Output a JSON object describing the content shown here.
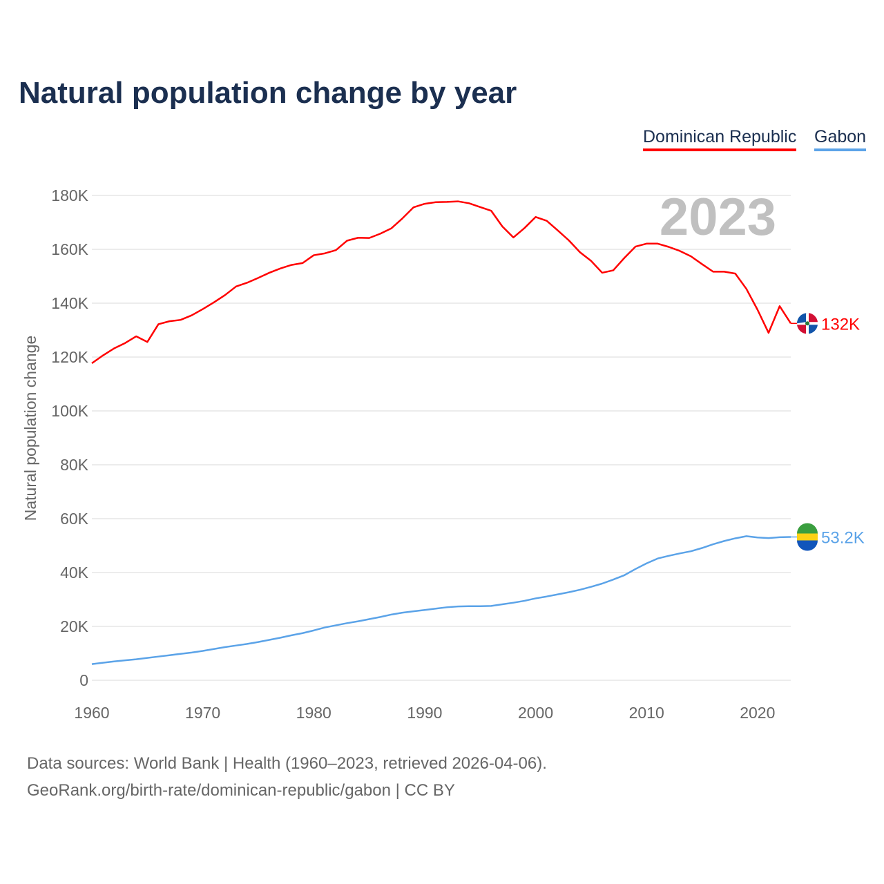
{
  "chart_data": {
    "type": "line",
    "title": "Natural population change by year",
    "ylabel": "Natural population change",
    "xlabel": "",
    "xlim": [
      1960,
      2023
    ],
    "ylim": [
      0,
      180000
    ],
    "xticks": [
      "1960",
      "1970",
      "1980",
      "1990",
      "2000",
      "2010",
      "2020"
    ],
    "yticks": [
      "0",
      "20K",
      "40K",
      "60K",
      "80K",
      "100K",
      "120K",
      "140K",
      "160K",
      "180K"
    ],
    "grid": true,
    "legend_position": "top-right",
    "year_label": "2023",
    "x": [
      1960,
      1961,
      1962,
      1963,
      1964,
      1965,
      1966,
      1967,
      1968,
      1969,
      1970,
      1971,
      1972,
      1973,
      1974,
      1975,
      1976,
      1977,
      1978,
      1979,
      1980,
      1981,
      1982,
      1983,
      1984,
      1985,
      1986,
      1987,
      1988,
      1989,
      1990,
      1991,
      1992,
      1993,
      1994,
      1995,
      1996,
      1997,
      1998,
      1999,
      2000,
      2001,
      2002,
      2003,
      2004,
      2005,
      2006,
      2007,
      2008,
      2009,
      2010,
      2011,
      2012,
      2013,
      2014,
      2015,
      2016,
      2017,
      2018,
      2019,
      2020,
      2021,
      2022,
      2023
    ],
    "series": [
      {
        "name": "Dominican Republic",
        "color": "#ff0000",
        "end_label": "132K",
        "values": [
          117700,
          120600,
          123200,
          125200,
          127700,
          125600,
          132200,
          133300,
          133800,
          135500,
          137800,
          140300,
          143000,
          146200,
          147600,
          149400,
          151300,
          152900,
          154200,
          154900,
          157800,
          158500,
          159700,
          163200,
          164300,
          164200,
          165800,
          167800,
          171500,
          175600,
          176900,
          177500,
          177600,
          177800,
          177100,
          175700,
          174300,
          168500,
          164400,
          167900,
          172000,
          170600,
          167000,
          163300,
          158900,
          155700,
          151300,
          152200,
          156800,
          161000,
          162100,
          162100,
          160900,
          159400,
          157400,
          154500,
          151700,
          151700,
          151000,
          145300,
          137600,
          129000,
          138900,
          132500
        ]
      },
      {
        "name": "Gabon",
        "color": "#5ba3e8",
        "end_label": "53.2K",
        "values": [
          6000,
          6500,
          7000,
          7400,
          7800,
          8300,
          8800,
          9300,
          9800,
          10300,
          10900,
          11600,
          12300,
          12900,
          13500,
          14200,
          15000,
          15800,
          16700,
          17500,
          18500,
          19600,
          20400,
          21200,
          21900,
          22700,
          23500,
          24400,
          25100,
          25600,
          26100,
          26600,
          27100,
          27400,
          27500,
          27500,
          27600,
          28200,
          28800,
          29500,
          30400,
          31100,
          31900,
          32700,
          33600,
          34700,
          35900,
          37400,
          39000,
          41300,
          43400,
          45200,
          46200,
          47100,
          47900,
          49100,
          50500,
          51700,
          52700,
          53500,
          53000,
          52800,
          53100,
          53200
        ]
      }
    ],
    "footer": [
      "Data sources: World Bank | Health (1960–2023, retrieved 2026-04-06).",
      "GeoRank.org/birth-rate/dominican-republic/gabon | CC BY"
    ]
  }
}
